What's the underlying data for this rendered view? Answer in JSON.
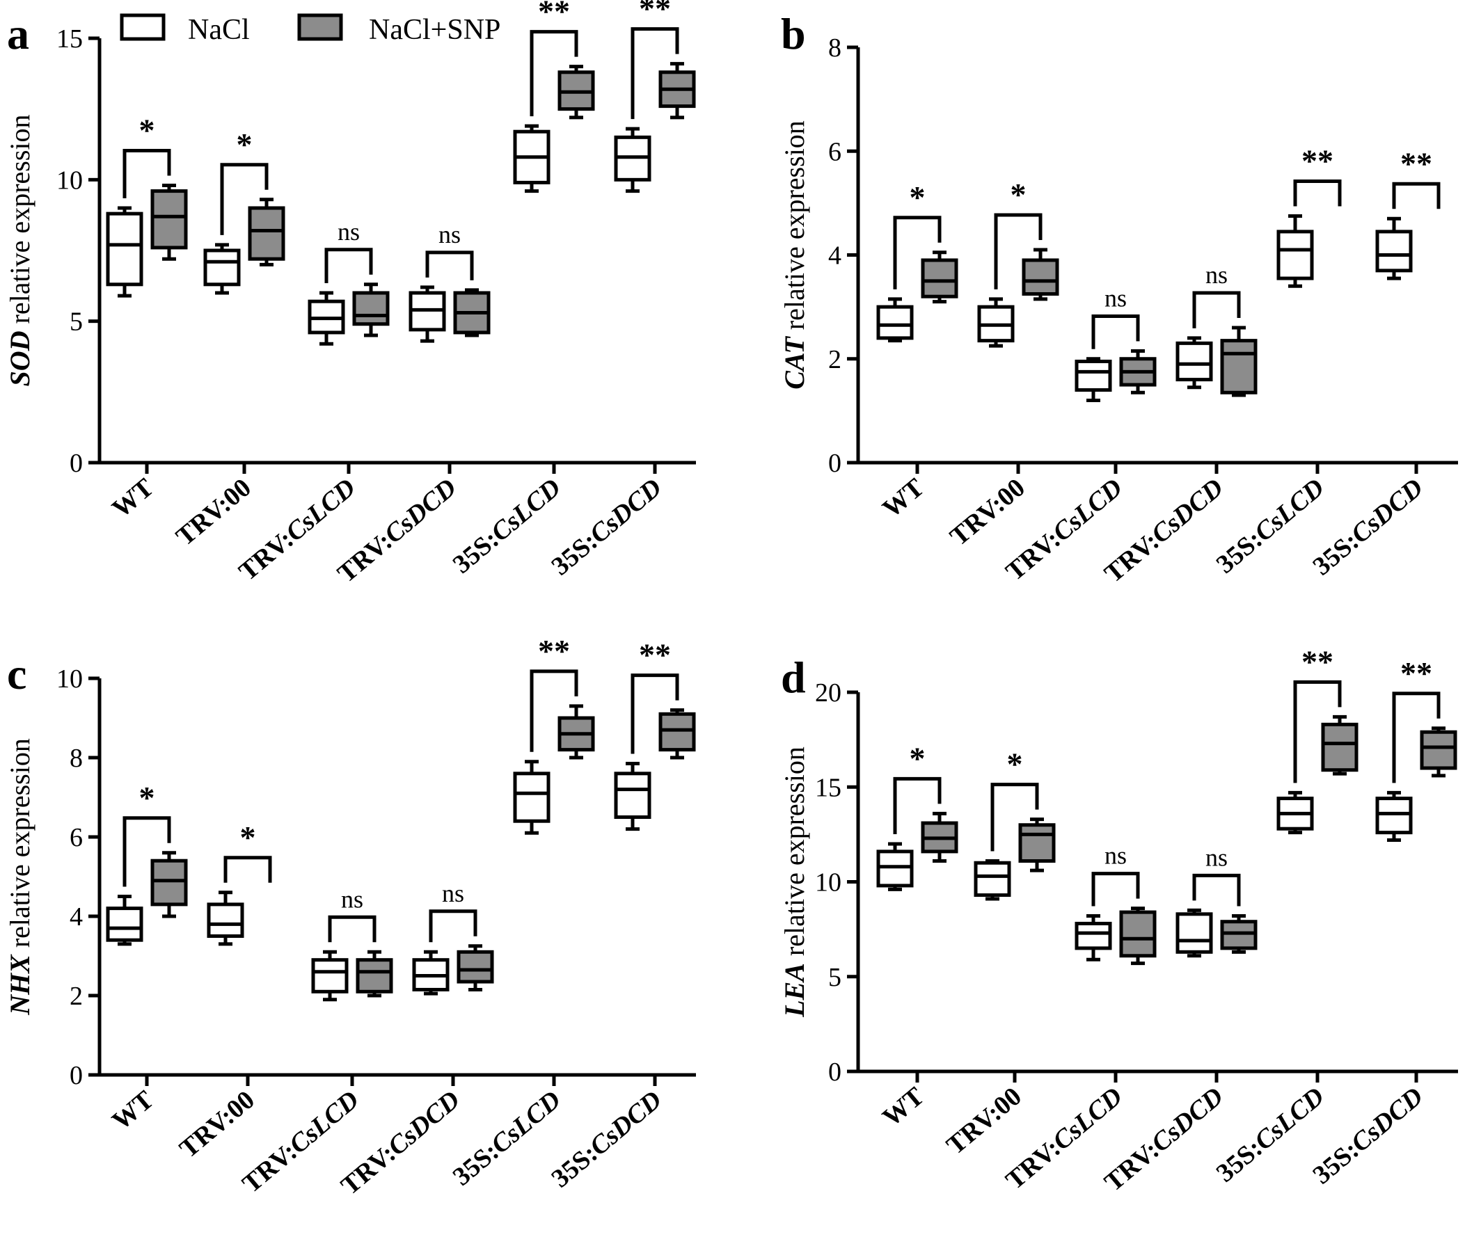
{
  "legend": [
    {
      "label": "NaCl",
      "color": "#ffffff"
    },
    {
      "label": "NaCl+SNP",
      "color": "#8c8c8c"
    }
  ],
  "chart_data": [
    {
      "type": "box",
      "panel_label": "a",
      "ylabel_italic": "SOD",
      "ylabel_rest": " relative expression",
      "ylim": [
        0,
        15
      ],
      "yticks": [
        0,
        5,
        10,
        15
      ],
      "groups": [
        {
          "label": "WT",
          "italic": "",
          "significance": "*",
          "nacl": {
            "min": 5.9,
            "q1": 6.3,
            "median": 7.7,
            "q3": 8.8,
            "max": 9.0
          },
          "snp": {
            "min": 7.2,
            "q1": 7.6,
            "median": 8.7,
            "q3": 9.6,
            "max": 9.8
          }
        },
        {
          "label": "TRV:00",
          "italic": "",
          "significance": "*",
          "nacl": {
            "min": 6.0,
            "q1": 6.3,
            "median": 7.1,
            "q3": 7.5,
            "max": 7.7
          },
          "snp": {
            "min": 7.0,
            "q1": 7.2,
            "median": 8.2,
            "q3": 9.0,
            "max": 9.3
          }
        },
        {
          "label": "TRV:",
          "italic": "CsLCD",
          "significance": "ns",
          "nacl": {
            "min": 4.2,
            "q1": 4.6,
            "median": 5.1,
            "q3": 5.7,
            "max": 6.0
          },
          "snp": {
            "min": 4.5,
            "q1": 4.9,
            "median": 5.2,
            "q3": 6.0,
            "max": 6.3
          }
        },
        {
          "label": "TRV:",
          "italic": "CsDCD",
          "significance": "ns",
          "nacl": {
            "min": 4.3,
            "q1": 4.7,
            "median": 5.4,
            "q3": 6.0,
            "max": 6.2
          },
          "snp": {
            "min": 4.5,
            "q1": 4.6,
            "median": 5.3,
            "q3": 6.0,
            "max": 6.1
          }
        },
        {
          "label": "35S:",
          "italic": "CsLCD",
          "significance": "**",
          "nacl": {
            "min": 9.6,
            "q1": 9.9,
            "median": 10.8,
            "q3": 11.7,
            "max": 11.9
          },
          "snp": {
            "min": 12.2,
            "q1": 12.5,
            "median": 13.1,
            "q3": 13.8,
            "max": 14.0
          }
        },
        {
          "label": "35S:",
          "italic": "CsDCD",
          "significance": "**",
          "nacl": {
            "min": 9.6,
            "q1": 10.0,
            "median": 10.8,
            "q3": 11.5,
            "max": 11.8
          },
          "snp": {
            "min": 12.2,
            "q1": 12.6,
            "median": 13.2,
            "q3": 13.8,
            "max": 14.1
          }
        }
      ]
    },
    {
      "type": "box",
      "panel_label": "b",
      "ylabel_italic": "CAT",
      "ylabel_rest": " relative expression",
      "ylim": [
        0,
        8
      ],
      "yticks": [
        0,
        2,
        4,
        6,
        8
      ],
      "groups": [
        {
          "label": "WT",
          "italic": "",
          "significance": "*",
          "nacl": {
            "min": 2.35,
            "q1": 2.4,
            "median": 2.65,
            "q3": 3.0,
            "max": 3.15
          },
          "snp": {
            "min": 3.1,
            "q1": 3.2,
            "median": 3.5,
            "q3": 3.9,
            "max": 4.05
          }
        },
        {
          "label": "TRV:00",
          "italic": "",
          "significance": "*",
          "nacl": {
            "min": 2.25,
            "q1": 2.35,
            "median": 2.65,
            "q3": 3.0,
            "max": 3.15
          },
          "snp": {
            "min": 3.15,
            "q1": 3.25,
            "median": 3.5,
            "q3": 3.9,
            "max": 4.1
          }
        },
        {
          "label": "TRV:",
          "italic": "CsLCD",
          "significance": "ns",
          "nacl": {
            "min": 1.2,
            "q1": 1.4,
            "median": 1.75,
            "q3": 1.95,
            "max": 2.0
          },
          "snp": {
            "min": 1.35,
            "q1": 1.5,
            "median": 1.75,
            "q3": 2.0,
            "max": 2.15
          }
        },
        {
          "label": "TRV:",
          "italic": "CsDCD",
          "significance": "ns",
          "nacl": {
            "min": 1.45,
            "q1": 1.6,
            "median": 1.9,
            "q3": 2.3,
            "max": 2.4
          },
          "snp": {
            "min": 1.3,
            "q1": 1.35,
            "median": 2.1,
            "q3": 2.35,
            "max": 2.6
          }
        },
        {
          "label": "35S:",
          "italic": "CsLCD",
          "significance": "**",
          "nacl": {
            "min": 3.4,
            "q1": 3.55,
            "median": 4.1,
            "q3": 4.45,
            "max": 4.75
          }
        },
        {
          "label": "35S:",
          "italic": "CsDCD",
          "significance": "**",
          "nacl": {
            "min": 3.55,
            "q1": 3.7,
            "median": 4.0,
            "q3": 4.45,
            "max": 4.7
          }
        }
      ]
    },
    {
      "type": "box",
      "panel_label": "c",
      "ylabel_italic": "NHX",
      "ylabel_rest": " relative expression",
      "ylim": [
        0,
        10
      ],
      "yticks": [
        0,
        2,
        4,
        6,
        8,
        10
      ],
      "groups": [
        {
          "label": "WT",
          "italic": "",
          "significance": "*",
          "nacl": {
            "min": 3.3,
            "q1": 3.4,
            "median": 3.7,
            "q3": 4.2,
            "max": 4.5
          },
          "snp": {
            "min": 4.0,
            "q1": 4.3,
            "median": 4.9,
            "q3": 5.4,
            "max": 5.6
          }
        },
        {
          "label": "TRV:00",
          "italic": "",
          "significance": "*",
          "nacl": {
            "min": 3.3,
            "q1": 3.5,
            "median": 3.8,
            "q3": 4.3,
            "max": 4.6
          }
        },
        {
          "label": "TRV:",
          "italic": "CsLCD",
          "significance": "ns",
          "nacl": {
            "min": 1.9,
            "q1": 2.1,
            "median": 2.6,
            "q3": 2.9,
            "max": 3.1
          },
          "snp": {
            "min": 2.0,
            "q1": 2.1,
            "median": 2.6,
            "q3": 2.9,
            "max": 3.1
          }
        },
        {
          "label": "TRV:",
          "italic": "CsDCD",
          "significance": "ns",
          "nacl": {
            "min": 2.05,
            "q1": 2.15,
            "median": 2.5,
            "q3": 2.9,
            "max": 3.1
          },
          "snp": {
            "min": 2.15,
            "q1": 2.35,
            "median": 2.65,
            "q3": 3.1,
            "max": 3.25
          }
        },
        {
          "label": "35S:",
          "italic": "CsLCD",
          "significance": "**",
          "nacl": {
            "min": 6.1,
            "q1": 6.4,
            "median": 7.1,
            "q3": 7.6,
            "max": 7.9
          },
          "snp": {
            "min": 8.0,
            "q1": 8.2,
            "median": 8.6,
            "q3": 9.0,
            "max": 9.3
          }
        },
        {
          "label": "35S:",
          "italic": "CsDCD",
          "significance": "**",
          "nacl": {
            "min": 6.2,
            "q1": 6.5,
            "median": 7.2,
            "q3": 7.6,
            "max": 7.85
          },
          "snp": {
            "min": 8.0,
            "q1": 8.2,
            "median": 8.7,
            "q3": 9.1,
            "max": 9.2
          }
        }
      ]
    },
    {
      "type": "box",
      "panel_label": "d",
      "ylabel_italic": "LEA",
      "ylabel_rest": " relative expression",
      "ylim": [
        0,
        20
      ],
      "yticks": [
        0,
        5,
        10,
        15,
        20
      ],
      "groups": [
        {
          "label": "WT",
          "italic": "",
          "significance": "*",
          "nacl": {
            "min": 9.6,
            "q1": 9.8,
            "median": 10.8,
            "q3": 11.6,
            "max": 12.0
          },
          "snp": {
            "min": 11.1,
            "q1": 11.6,
            "median": 12.3,
            "q3": 13.1,
            "max": 13.6
          }
        },
        {
          "label": "TRV:00",
          "italic": "",
          "significance": "*",
          "nacl": {
            "min": 9.1,
            "q1": 9.3,
            "median": 10.3,
            "q3": 11.0,
            "max": 11.1
          },
          "snp": {
            "min": 10.6,
            "q1": 11.1,
            "median": 12.5,
            "q3": 13.0,
            "max": 13.3
          }
        },
        {
          "label": "TRV:",
          "italic": "CsLCD",
          "significance": "ns",
          "nacl": {
            "min": 5.9,
            "q1": 6.5,
            "median": 7.3,
            "q3": 7.8,
            "max": 8.2
          },
          "snp": {
            "min": 5.7,
            "q1": 6.1,
            "median": 7.0,
            "q3": 8.4,
            "max": 8.6
          }
        },
        {
          "label": "TRV:",
          "italic": "CsDCD",
          "significance": "ns",
          "nacl": {
            "min": 6.1,
            "q1": 6.3,
            "median": 6.9,
            "q3": 8.3,
            "max": 8.5
          },
          "snp": {
            "min": 6.3,
            "q1": 6.5,
            "median": 7.3,
            "q3": 7.9,
            "max": 8.2
          }
        },
        {
          "label": "35S:",
          "italic": "CsLCD",
          "significance": "**",
          "nacl": {
            "min": 12.6,
            "q1": 12.8,
            "median": 13.6,
            "q3": 14.4,
            "max": 14.7
          },
          "snp": {
            "min": 15.7,
            "q1": 15.9,
            "median": 17.3,
            "q3": 18.3,
            "max": 18.7
          }
        },
        {
          "label": "35S:",
          "italic": "CsDCD",
          "significance": "**",
          "nacl": {
            "min": 12.2,
            "q1": 12.6,
            "median": 13.6,
            "q3": 14.4,
            "max": 14.7
          },
          "snp": {
            "min": 15.6,
            "q1": 16.0,
            "median": 17.1,
            "q3": 17.9,
            "max": 18.1
          }
        }
      ]
    }
  ]
}
